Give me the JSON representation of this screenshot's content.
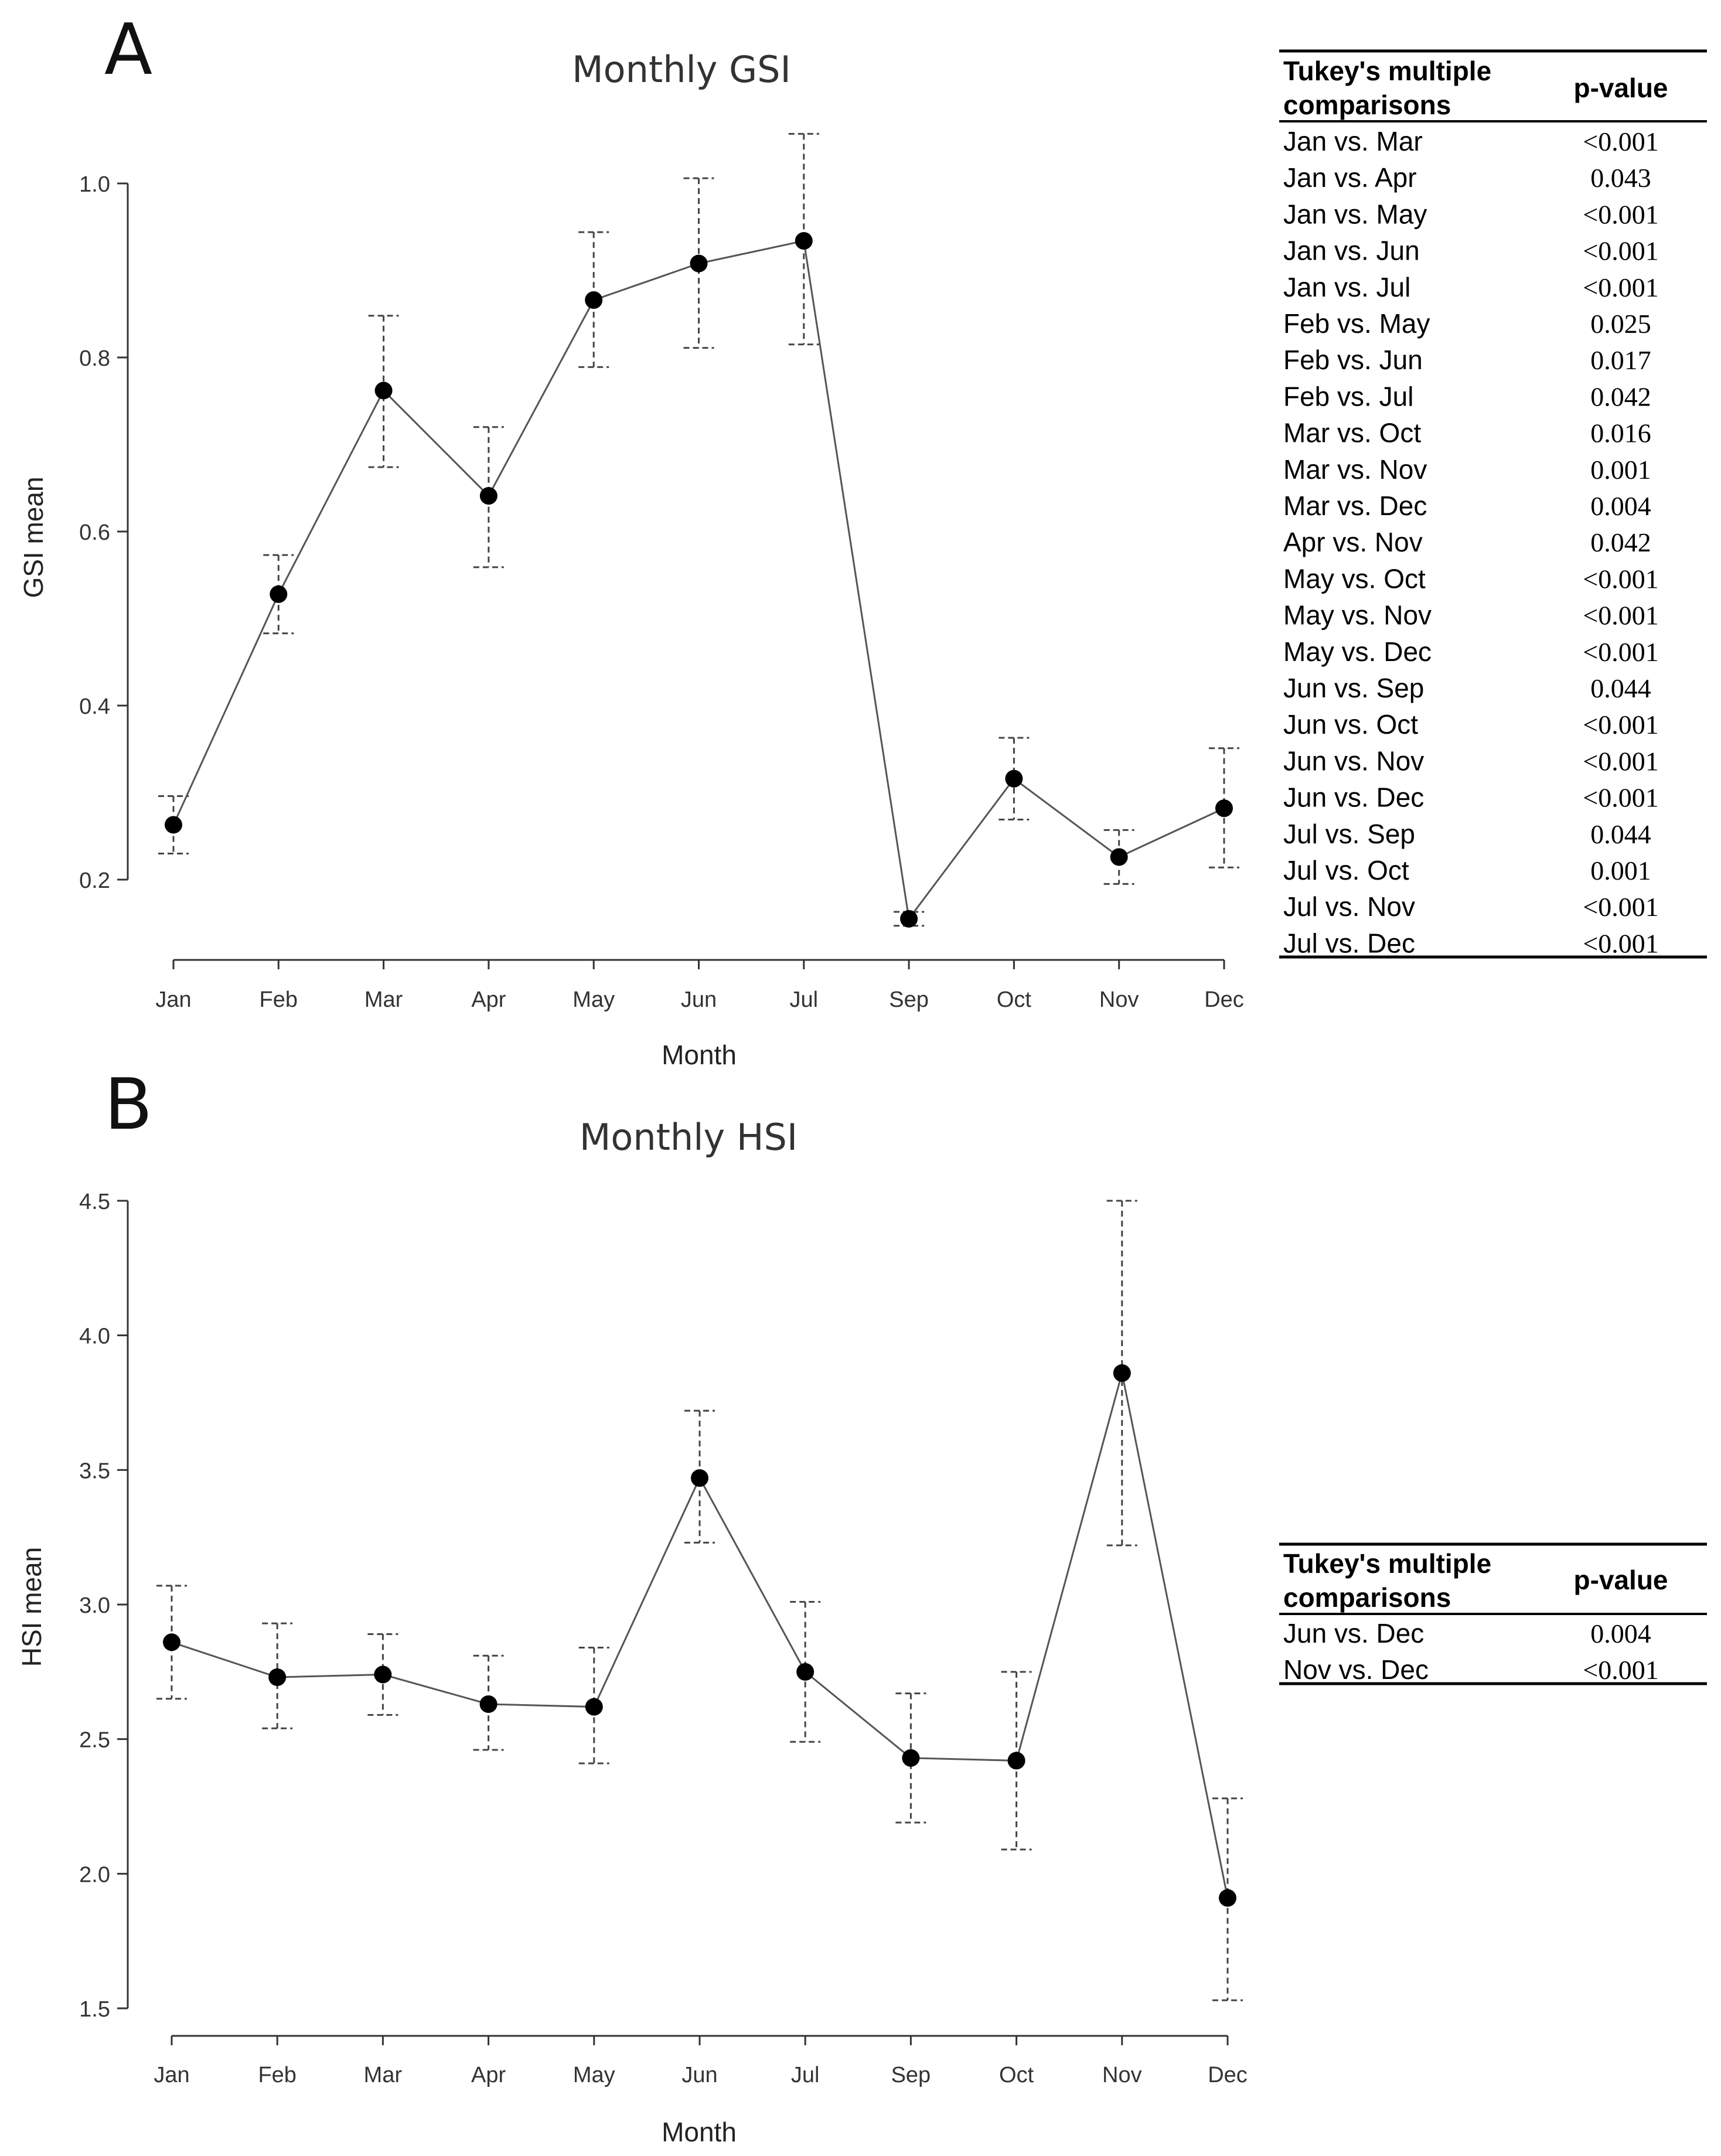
{
  "panels": [
    {
      "letter": "A",
      "table": {
        "header_comparison_line1": "Tukey's multiple",
        "header_comparison_line2": "comparisons",
        "header_pvalue": "p-value",
        "rows": [
          {
            "comparison": "Jan vs. Mar",
            "p": "<0.001"
          },
          {
            "comparison": "Jan vs. Apr",
            "p": "0.043"
          },
          {
            "comparison": "Jan vs. May",
            "p": "<0.001"
          },
          {
            "comparison": "Jan vs. Jun",
            "p": "<0.001"
          },
          {
            "comparison": "Jan vs. Jul",
            "p": "<0.001"
          },
          {
            "comparison": "Feb vs. May",
            "p": "0.025"
          },
          {
            "comparison": "Feb vs. Jun",
            "p": "0.017"
          },
          {
            "comparison": "Feb vs. Jul",
            "p": "0.042"
          },
          {
            "comparison": "Mar vs. Oct",
            "p": "0.016"
          },
          {
            "comparison": "Mar vs. Nov",
            "p": "0.001"
          },
          {
            "comparison": "Mar vs. Dec",
            "p": "0.004"
          },
          {
            "comparison": "Apr vs. Nov",
            "p": "0.042"
          },
          {
            "comparison": "May vs. Oct",
            "p": "<0.001"
          },
          {
            "comparison": "May vs. Nov",
            "p": "<0.001"
          },
          {
            "comparison": "May vs. Dec",
            "p": "<0.001"
          },
          {
            "comparison": "Jun vs. Sep",
            "p": "0.044"
          },
          {
            "comparison": "Jun vs. Oct",
            "p": "<0.001"
          },
          {
            "comparison": "Jun vs. Nov",
            "p": "<0.001"
          },
          {
            "comparison": "Jun vs. Dec",
            "p": "<0.001"
          },
          {
            "comparison": "Jul vs. Sep",
            "p": "0.044"
          },
          {
            "comparison": "Jul vs. Oct",
            "p": "0.001"
          },
          {
            "comparison": "Jul vs. Nov",
            "p": "<0.001"
          },
          {
            "comparison": "Jul vs. Dec",
            "p": "<0.001"
          }
        ]
      }
    },
    {
      "letter": "B",
      "table": {
        "header_comparison_line1": "Tukey's multiple",
        "header_comparison_line2": "comparisons",
        "header_pvalue": "p-value",
        "rows": [
          {
            "comparison": "Jun vs. Dec",
            "p": "0.004"
          },
          {
            "comparison": "Nov vs. Dec",
            "p": "<0.001"
          }
        ]
      }
    }
  ],
  "chart_data": [
    {
      "type": "line",
      "title": "Monthly GSI",
      "xlabel": "Month",
      "ylabel": "GSI mean",
      "categories": [
        "Jan",
        "Feb",
        "Mar",
        "Apr",
        "May",
        "Jun",
        "Jul",
        "Sep",
        "Oct",
        "Nov",
        "Dec"
      ],
      "series": [
        {
          "values": [
            0.263,
            0.528,
            0.762,
            0.641,
            0.866,
            0.908,
            0.934,
            0.155,
            0.316,
            0.226,
            0.282
          ],
          "error_lower": [
            0.23,
            0.483,
            0.674,
            0.559,
            0.789,
            0.811,
            0.815,
            0.147,
            0.269,
            0.195,
            0.214
          ],
          "error_upper": [
            0.296,
            0.573,
            0.848,
            0.72,
            0.944,
            1.006,
            1.057,
            0.163,
            0.363,
            0.257,
            0.351
          ]
        }
      ],
      "yticks": [
        "0.2",
        "0.4",
        "0.6",
        "0.8",
        "1.0"
      ],
      "ylim": [
        0.1,
        1.06
      ],
      "grid": false,
      "error_bar_style": "dashed",
      "colors": {
        "line": "#555555",
        "marker": "#000000",
        "axis": "#333333"
      }
    },
    {
      "type": "line",
      "title": "Monthly HSI",
      "xlabel": "Month",
      "ylabel": "HSI mean",
      "categories": [
        "Jan",
        "Feb",
        "Mar",
        "Apr",
        "May",
        "Jun",
        "Jul",
        "Sep",
        "Oct",
        "Nov",
        "Dec"
      ],
      "series": [
        {
          "values": [
            2.86,
            2.73,
            2.74,
            2.63,
            2.62,
            3.47,
            2.75,
            2.43,
            2.42,
            3.86,
            1.91
          ],
          "error_lower": [
            2.65,
            2.54,
            2.59,
            2.46,
            2.41,
            3.23,
            2.49,
            2.19,
            2.09,
            3.22,
            1.53
          ],
          "error_upper": [
            3.07,
            2.93,
            2.89,
            2.81,
            2.84,
            3.72,
            3.01,
            2.67,
            2.75,
            4.5,
            2.28
          ]
        }
      ],
      "yticks": [
        "1.5",
        "2.0",
        "2.5",
        "3.0",
        "3.5",
        "4.0",
        "4.5"
      ],
      "ylim": [
        1.5,
        4.5
      ],
      "grid": false,
      "error_bar_style": "dashed",
      "colors": {
        "line": "#555555",
        "marker": "#000000",
        "axis": "#333333"
      }
    }
  ]
}
